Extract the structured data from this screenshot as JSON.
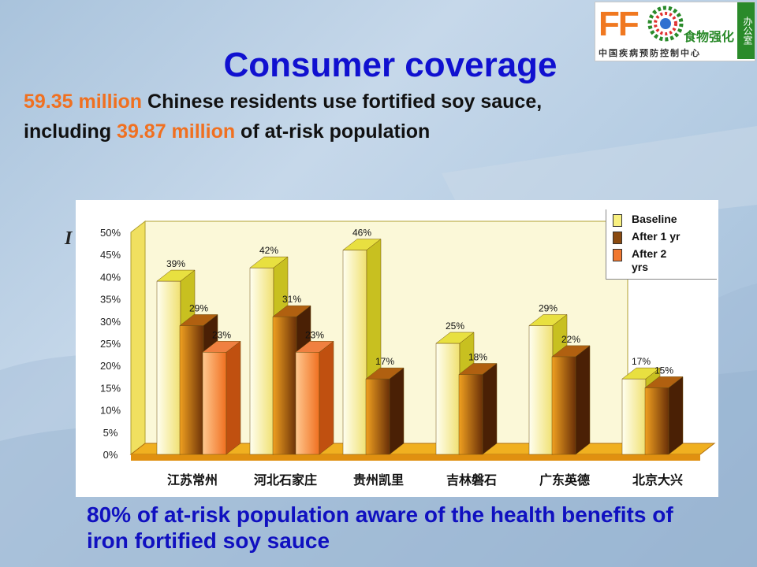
{
  "slide": {
    "title": "Consumer coverage",
    "line1_num": "59.35 million",
    "line1_rest": " Chinese residents use fortified soy sauce,",
    "line2_pre": "including ",
    "line2_num": "39.87 million",
    "line2_rest": " of at-risk population",
    "footer": "80% of at-risk population aware of the health benefits of iron fortified soy sauce",
    "partial_char": "I"
  },
  "logo": {
    "letters": "FF",
    "cn_name": "食物强化",
    "org": "中国疾病预防控制中心",
    "side": "办公室"
  },
  "colors": {
    "title": "#1010d0",
    "highlight": "#f07020",
    "baseline": "#f8f090",
    "after1": "#a05010",
    "after2": "#f5a050"
  },
  "chart_data": {
    "type": "bar",
    "categories": [
      "江苏常州",
      "河北石家庄",
      "贵州凯里",
      "吉林磐石",
      "广东英德",
      "北京大兴"
    ],
    "series": [
      {
        "name": "Baseline",
        "values": [
          39,
          42,
          46,
          25,
          29,
          17
        ],
        "labels": [
          "39%",
          "42%",
          "46%",
          "25%",
          "29%",
          "17%"
        ]
      },
      {
        "name": "After 1 yr",
        "values": [
          29,
          31,
          17,
          18,
          22,
          15
        ],
        "labels": [
          "29%",
          "31%",
          "17%",
          "18%",
          "22%",
          "15%"
        ]
      },
      {
        "name": "After 2 yrs",
        "values": [
          23,
          23,
          null,
          null,
          null,
          null
        ],
        "labels": [
          "23%",
          "23%",
          "",
          "",
          "",
          ""
        ]
      }
    ],
    "y_ticks": [
      "0%",
      "5%",
      "10%",
      "15%",
      "20%",
      "25%",
      "30%",
      "35%",
      "40%",
      "45%",
      "50%"
    ],
    "ylim": [
      0,
      50
    ],
    "legend": "top-right"
  }
}
